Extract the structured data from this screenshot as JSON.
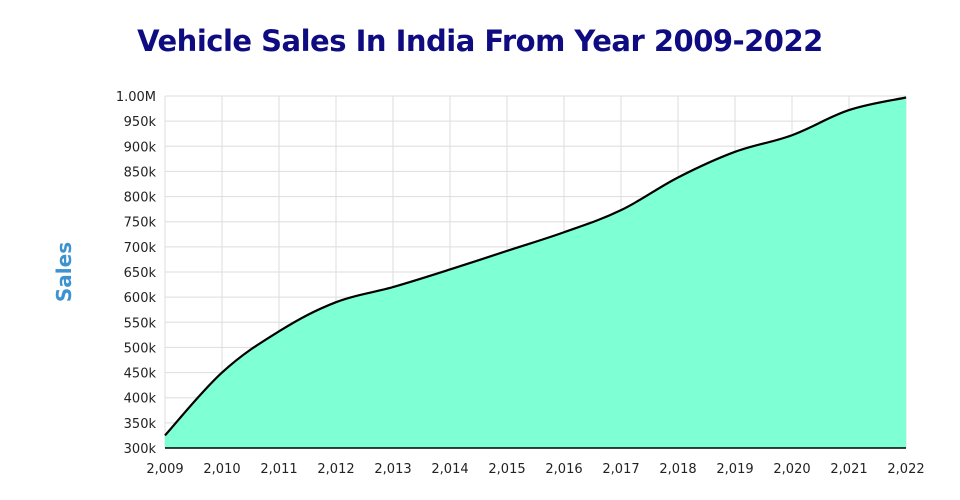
{
  "chart_data": {
    "type": "area",
    "title": "Vehicle Sales In India From Year 2009-2022",
    "xlabel": "",
    "ylabel": "Sales",
    "x": [
      2009,
      2010,
      2011,
      2012,
      2013,
      2014,
      2015,
      2016,
      2017,
      2018,
      2019,
      2020,
      2021,
      2022
    ],
    "x_tick_labels": [
      "2,009",
      "2,010",
      "2,011",
      "2,012",
      "2,013",
      "2,014",
      "2,015",
      "2,016",
      "2,017",
      "2,018",
      "2,019",
      "2,020",
      "2,021",
      "2,022"
    ],
    "series": [
      {
        "name": "Sales",
        "values": [
          325000,
          450000,
          532000,
          590000,
          620000,
          655000,
          692000,
          729000,
          773000,
          838000,
          889000,
          922000,
          972000,
          997000
        ]
      }
    ],
    "ylim": [
      300000,
      1000000
    ],
    "y_ticks": [
      300000,
      350000,
      400000,
      450000,
      500000,
      550000,
      600000,
      650000,
      700000,
      750000,
      800000,
      850000,
      900000,
      950000,
      1000000
    ],
    "y_tick_labels": [
      "300k",
      "350k",
      "400k",
      "450k",
      "500k",
      "550k",
      "600k",
      "650k",
      "700k",
      "750k",
      "800k",
      "850k",
      "900k",
      "950k",
      "1.00M"
    ],
    "grid": true,
    "legend": "none",
    "colors": {
      "fill": "#7fffd4",
      "line": "#000000",
      "title": "#0f0c82",
      "ylabel": "#3d93cf",
      "grid": "#dddddd"
    }
  }
}
